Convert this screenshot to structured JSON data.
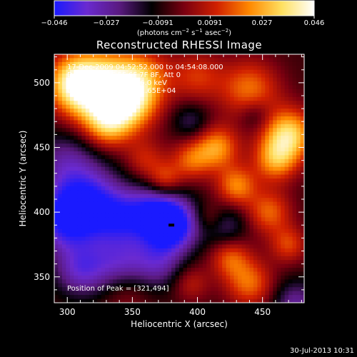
{
  "colorbar": {
    "ticks": [
      "−0.046",
      "−0.027",
      "−0.0091",
      "0.0091",
      "0.027",
      "0.046"
    ],
    "unit_main": "(photons cm",
    "unit_sup1": "−2",
    "unit_mid": " s",
    "unit_sup2": "−1",
    "unit_end": " asec",
    "unit_sup3": "−2",
    "unit_close": ")",
    "colors": [
      "#1a1aff",
      "#6a2ad0",
      "#5a1a80",
      "#000000",
      "#7a0010",
      "#d02000",
      "#ff8800",
      "#ffe060",
      "#ffffff"
    ]
  },
  "annotations": {
    "line1": "17-Dec-2009 04:52:52.000 to 04:54:08.000",
    "line2": "Detectors: 4F 5F 6F 7F 8F, Att 0",
    "line3": "Energy Range: 3.0 - 6.0 keV",
    "line4": "Clean. Total Counts: 1.65E+04",
    "peak": "Position of Peak = [321,494]"
  },
  "footer": {
    "timestamp": "30-Jul-2013 10:31"
  },
  "chart_data": {
    "type": "heatmap",
    "title": "Reconstructed RHESSI Image",
    "xlabel": "Heliocentric X (arcsec)",
    "ylabel": "Heliocentric Y (arcsec)",
    "xlim": [
      290,
      482
    ],
    "ylim": [
      330,
      522
    ],
    "xticks": [
      300,
      350,
      400,
      450
    ],
    "yticks": [
      350,
      400,
      450,
      500
    ],
    "zlim": [
      -0.046,
      0.046
    ],
    "peak": [
      321,
      494
    ],
    "blobs": [
      {
        "x": 325,
        "y": 495,
        "w": 0.046,
        "r": 22
      },
      {
        "x": 345,
        "y": 485,
        "w": 0.035,
        "r": 16
      },
      {
        "x": 305,
        "y": 500,
        "w": 0.03,
        "r": 14
      },
      {
        "x": 360,
        "y": 505,
        "w": 0.02,
        "r": 15
      },
      {
        "x": 330,
        "y": 465,
        "w": 0.018,
        "r": 12
      },
      {
        "x": 400,
        "y": 505,
        "w": 0.018,
        "r": 14
      },
      {
        "x": 440,
        "y": 495,
        "w": 0.026,
        "r": 16
      },
      {
        "x": 470,
        "y": 460,
        "w": 0.04,
        "r": 14
      },
      {
        "x": 460,
        "y": 440,
        "w": 0.028,
        "r": 12
      },
      {
        "x": 415,
        "y": 450,
        "w": 0.03,
        "r": 12
      },
      {
        "x": 395,
        "y": 440,
        "w": 0.022,
        "r": 11
      },
      {
        "x": 430,
        "y": 420,
        "w": 0.028,
        "r": 11
      },
      {
        "x": 455,
        "y": 400,
        "w": 0.024,
        "r": 12
      },
      {
        "x": 470,
        "y": 375,
        "w": 0.02,
        "r": 10
      },
      {
        "x": 425,
        "y": 365,
        "w": 0.022,
        "r": 11
      },
      {
        "x": 440,
        "y": 345,
        "w": 0.025,
        "r": 13
      },
      {
        "x": 395,
        "y": 345,
        "w": 0.014,
        "r": 10
      },
      {
        "x": 360,
        "y": 440,
        "w": 0.016,
        "r": 11
      },
      {
        "x": 375,
        "y": 425,
        "w": 0.02,
        "r": 9
      },
      {
        "x": 410,
        "y": 395,
        "w": 0.015,
        "r": 9
      },
      {
        "x": 345,
        "y": 340,
        "w": 0.012,
        "r": 14
      },
      {
        "x": 300,
        "y": 440,
        "w": -0.02,
        "r": 18
      },
      {
        "x": 300,
        "y": 395,
        "w": -0.04,
        "r": 18
      },
      {
        "x": 320,
        "y": 410,
        "w": -0.025,
        "r": 18
      },
      {
        "x": 340,
        "y": 395,
        "w": -0.022,
        "r": 14
      },
      {
        "x": 380,
        "y": 390,
        "w": -0.046,
        "r": 14
      },
      {
        "x": 365,
        "y": 400,
        "w": -0.028,
        "r": 15
      },
      {
        "x": 340,
        "y": 360,
        "w": -0.025,
        "r": 16
      },
      {
        "x": 310,
        "y": 355,
        "w": -0.024,
        "r": 14
      },
      {
        "x": 370,
        "y": 360,
        "w": -0.02,
        "r": 14
      },
      {
        "x": 420,
        "y": 390,
        "w": -0.018,
        "r": 12
      },
      {
        "x": 475,
        "y": 330,
        "w": -0.02,
        "r": 12
      },
      {
        "x": 395,
        "y": 470,
        "w": -0.014,
        "r": 10
      },
      {
        "x": 445,
        "y": 475,
        "w": -0.012,
        "r": 9
      }
    ]
  }
}
